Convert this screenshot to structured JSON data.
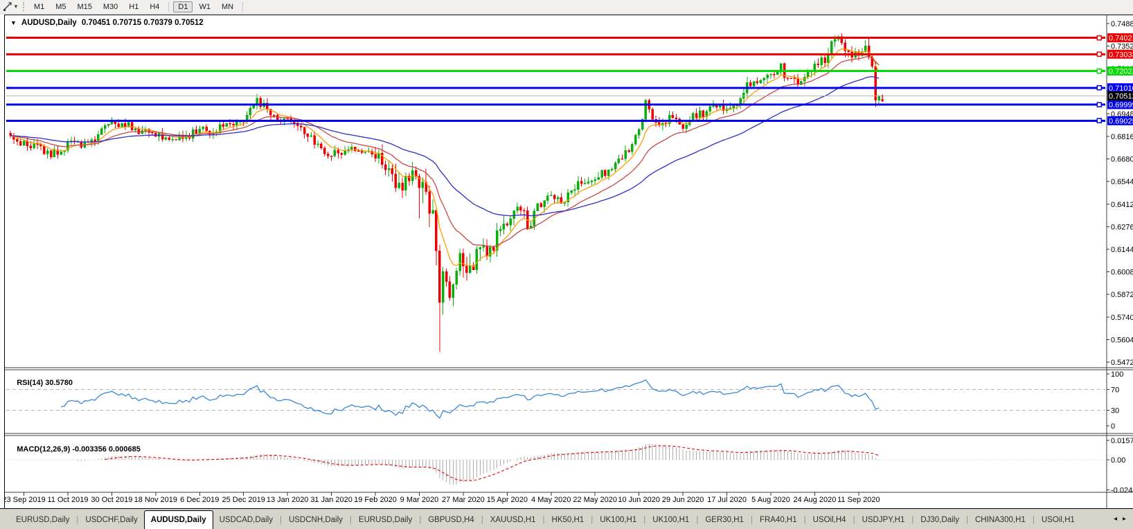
{
  "toolbar": {
    "tool_icon": "trendline-tool",
    "dropdown_icon": "dropdown-caret",
    "timeframes": [
      "M1",
      "M5",
      "M15",
      "M30",
      "H1",
      "H4",
      "D1",
      "W1",
      "MN"
    ],
    "active_timeframe": "D1"
  },
  "chart": {
    "title": "AUDUSD,Daily",
    "ohlc": "0.70451 0.70715 0.70379 0.70512",
    "price_axis": {
      "labels": [
        "0.74880",
        "0.73520",
        "0.72160",
        "0.70800",
        "0.69480",
        "0.68160",
        "0.66800",
        "0.65440",
        "0.64120",
        "0.62760",
        "0.61440",
        "0.60080",
        "0.58720",
        "0.57400",
        "0.56040",
        "0.54720"
      ],
      "top_value": 0.7488,
      "step_value": 0.0136
    },
    "hlines": [
      {
        "label": "0.74021",
        "value": 0.74021,
        "color": "#f00000"
      },
      {
        "label": "0.73033",
        "value": 0.73033,
        "color": "#f00000"
      },
      {
        "label": "0.72022",
        "value": 0.72022,
        "color": "#00dc00"
      },
      {
        "label": "0.71010",
        "value": 0.7101,
        "color": "#0000f0"
      },
      {
        "label": "0.69999",
        "value": 0.69999,
        "color": "#0000f0"
      },
      {
        "label": "0.69025",
        "value": 0.69025,
        "color": "#0000f0"
      }
    ],
    "current_price": {
      "label": "0.70512",
      "value": 0.70512,
      "line_color": "#b6b6b6",
      "badge_color": "#000000"
    }
  },
  "rsi_panel": {
    "label": "RSI(14)",
    "value": "30.5780",
    "axis": [
      "100",
      "70",
      "30",
      "0"
    ],
    "axis_values": [
      100,
      70,
      30,
      0
    ],
    "dashed_levels": [
      70,
      30
    ]
  },
  "macd_panel": {
    "label": "MACD(12,26,9)",
    "values": "-0.003356 0.000685",
    "axis": [
      "0.015741",
      "0.00",
      "-0.02441"
    ],
    "axis_values": [
      0.015741,
      0,
      -0.02441
    ]
  },
  "tabs": {
    "items": [
      {
        "label": "EURUSD,Daily",
        "active": false
      },
      {
        "label": "USDCHF,Daily",
        "active": false
      },
      {
        "label": "AUDUSD,Daily",
        "active": true
      },
      {
        "label": "USDCAD,Daily",
        "active": false
      },
      {
        "label": "USDCNH,Daily",
        "active": false
      },
      {
        "label": "EURUSD,Daily",
        "active": false
      },
      {
        "label": "GBPUSD,H4",
        "active": false
      },
      {
        "label": "XAUUSD,H1",
        "active": false
      },
      {
        "label": "HK50,H1",
        "active": false
      },
      {
        "label": "UK100,H1",
        "active": false
      },
      {
        "label": "UK100,H1",
        "active": false
      },
      {
        "label": "GER30,H1",
        "active": false
      },
      {
        "label": "FRA40,H1",
        "active": false
      },
      {
        "label": "USOil,H4",
        "active": false
      },
      {
        "label": "USDJPY,H1",
        "active": false
      },
      {
        "label": "DJ30,Daily",
        "active": false
      },
      {
        "label": "CHINA300,H1",
        "active": false
      },
      {
        "label": "USOil,H1",
        "active": false
      }
    ],
    "scroll_left": "◂",
    "scroll_right": "▸"
  },
  "colors": {
    "bull": "#0cae0c",
    "bear": "#ee0000",
    "ma_fast": "#ff9c00",
    "ma_mid": "#c84646",
    "ma_slow": "#2e2ec8",
    "rsi_line": "#3787d8",
    "rsi_level": "#b4b4b4",
    "macd_hist": "#ababab",
    "macd_signal": "#e81010",
    "frame": "#3c3c3c",
    "end_arrow": "#ee0000"
  },
  "chart_data": {
    "type": "candlestick",
    "symbol": "AUDUSD",
    "timeframe": "Daily",
    "open": "0.70451",
    "high": "0.70715",
    "low": "0.70379",
    "close": "0.70512",
    "count": 258,
    "first_tick_index": 4,
    "candles_per_tick": 13,
    "x_ticks": [
      "23 Sep 2019",
      "11 Oct 2019",
      "30 Oct 2019",
      "18 Nov 2019",
      "6 Dec 2019",
      "25 Dec 2019",
      "13 Jan 2020",
      "31 Jan 2020",
      "19 Feb 2020",
      "9 Mar 2020",
      "27 Mar 2020",
      "15 Apr 2020",
      "4 May 2020",
      "22 May 2020",
      "10 Jun 2020",
      "29 Jun 2020",
      "17 Jul 2020",
      "5 Aug 2020",
      "24 Aug 2020",
      "11 Sep 2020"
    ],
    "close_anchors": [
      [
        0,
        0.68
      ],
      [
        4,
        0.677
      ],
      [
        8,
        0.6745
      ],
      [
        12,
        0.67
      ],
      [
        15,
        0.6735
      ],
      [
        17,
        0.676
      ],
      [
        21,
        0.6755
      ],
      [
        24,
        0.6785
      ],
      [
        28,
        0.6855
      ],
      [
        30,
        0.6885
      ],
      [
        33,
        0.6895
      ],
      [
        36,
        0.6855
      ],
      [
        40,
        0.6835
      ],
      [
        43,
        0.681
      ],
      [
        47,
        0.679
      ],
      [
        50,
        0.6805
      ],
      [
        53,
        0.6815
      ],
      [
        56,
        0.684
      ],
      [
        59,
        0.684
      ],
      [
        62,
        0.6855
      ],
      [
        65,
        0.6875
      ],
      [
        69,
        0.6905
      ],
      [
        73,
        0.702
      ],
      [
        75,
        0.6985
      ],
      [
        78,
        0.693
      ],
      [
        81,
        0.69
      ],
      [
        84,
        0.6885
      ],
      [
        87,
        0.6845
      ],
      [
        91,
        0.676
      ],
      [
        95,
        0.669
      ],
      [
        98,
        0.672
      ],
      [
        101,
        0.673
      ],
      [
        104,
        0.6695
      ],
      [
        106,
        0.672
      ],
      [
        108,
        0.6685
      ],
      [
        111,
        0.6615
      ],
      [
        114,
        0.6545
      ],
      [
        116,
        0.6515
      ],
      [
        118,
        0.659
      ],
      [
        119,
        0.6635
      ],
      [
        120,
        0.658
      ],
      [
        121,
        0.648
      ],
      [
        123,
        0.644
      ],
      [
        125,
        0.629
      ],
      [
        126,
        0.61
      ],
      [
        127,
        0.578
      ],
      [
        128,
        0.592
      ],
      [
        129,
        0.601
      ],
      [
        130,
        0.582
      ],
      [
        131,
        0.596
      ],
      [
        133,
        0.611
      ],
      [
        134,
        0.607
      ],
      [
        136,
        0.599
      ],
      [
        138,
        0.608
      ],
      [
        140,
        0.614
      ],
      [
        142,
        0.61
      ],
      [
        144,
        0.62
      ],
      [
        147,
        0.629
      ],
      [
        150,
        0.635
      ],
      [
        152,
        0.632
      ],
      [
        154,
        0.627
      ],
      [
        156,
        0.637
      ],
      [
        158,
        0.644
      ],
      [
        160,
        0.644
      ],
      [
        163,
        0.64
      ],
      [
        166,
        0.648
      ],
      [
        169,
        0.653
      ],
      [
        171,
        0.656
      ],
      [
        173,
        0.654
      ],
      [
        176,
        0.66
      ],
      [
        179,
        0.664
      ],
      [
        182,
        0.67
      ],
      [
        184,
        0.678
      ],
      [
        186,
        0.686
      ],
      [
        188,
        0.7
      ],
      [
        190,
        0.692
      ],
      [
        192,
        0.6855
      ],
      [
        195,
        0.692
      ],
      [
        199,
        0.687
      ],
      [
        202,
        0.692
      ],
      [
        205,
        0.695
      ],
      [
        208,
        0.6985
      ],
      [
        212,
        0.699
      ],
      [
        215,
        0.7
      ],
      [
        218,
        0.711
      ],
      [
        221,
        0.715
      ],
      [
        225,
        0.718
      ],
      [
        228,
        0.722
      ],
      [
        230,
        0.716
      ],
      [
        233,
        0.712
      ],
      [
        236,
        0.718
      ],
      [
        238,
        0.723
      ],
      [
        241,
        0.728
      ],
      [
        243,
        0.737
      ],
      [
        245,
        0.7413
      ],
      [
        247,
        0.734
      ],
      [
        249,
        0.728
      ],
      [
        251,
        0.731
      ],
      [
        253,
        0.733
      ],
      [
        254,
        0.73
      ],
      [
        255,
        0.721
      ],
      [
        256,
        0.705
      ],
      [
        257,
        0.70512
      ]
    ],
    "volatility": [
      [
        0,
        0.0035
      ],
      [
        108,
        0.007
      ],
      [
        122,
        0.011
      ],
      [
        132,
        0.0085
      ],
      [
        140,
        0.0055
      ],
      [
        160,
        0.0038
      ],
      [
        240,
        0.0042
      ],
      [
        254,
        0.006
      ]
    ],
    "wick_overrides": [
      [
        121,
        "low",
        0.6313
      ],
      [
        127,
        "low",
        0.551
      ],
      [
        245,
        "high",
        0.7414
      ],
      [
        256,
        "low",
        0.6985
      ]
    ],
    "moving_averages": [
      {
        "type": "ema",
        "period": 8,
        "color_key": "ma_fast"
      },
      {
        "type": "ema",
        "period": 20,
        "color_key": "ma_mid"
      },
      {
        "type": "ema",
        "period": 50,
        "color_key": "ma_slow"
      }
    ],
    "rsi": {
      "period": 14,
      "current": 30.578,
      "range": [
        0,
        100
      ],
      "dashed_levels": [
        70,
        30
      ]
    },
    "macd": {
      "fast": 12,
      "slow": 26,
      "signal": 9,
      "current_macd": -0.003356,
      "current_signal": 0.000685,
      "scale_top": 0.015741,
      "scale_bottom": -0.02441
    },
    "end_arrow": {
      "price": 0.7035,
      "direction": "down"
    }
  }
}
